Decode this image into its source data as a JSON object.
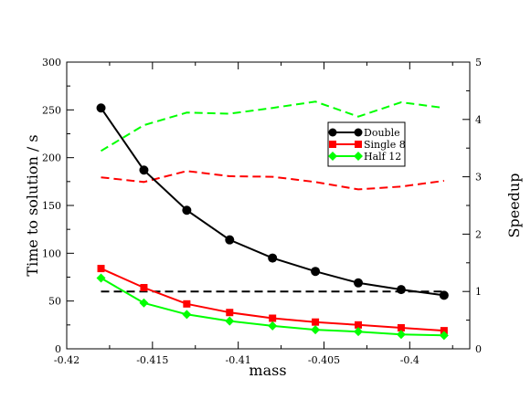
{
  "chart_data": {
    "type": "line",
    "title": "",
    "xlabel": "mass",
    "ylabel": "Time to solution / s",
    "y2label": "Speedup",
    "xlim": [
      -0.42,
      -0.3965
    ],
    "ylim": [
      0,
      300
    ],
    "y2lim": [
      0,
      5
    ],
    "xticks": [
      -0.42,
      -0.415,
      -0.41,
      -0.405,
      -0.4
    ],
    "xtick_labels": [
      "-0.42",
      "-0.415",
      "-0.41",
      "-0.405",
      "-0.4"
    ],
    "yticks": [
      0,
      50,
      100,
      150,
      200,
      250,
      300
    ],
    "ytick_labels": [
      "0",
      "50",
      "100",
      "150",
      "200",
      "250",
      "300"
    ],
    "y2ticks": [
      0,
      1,
      2,
      3,
      4,
      5
    ],
    "y2tick_labels": [
      "0",
      "1",
      "2",
      "3",
      "4",
      "5"
    ],
    "grid": false,
    "legend_position": "center-right",
    "x": [
      -0.418,
      -0.4155,
      -0.413,
      -0.4105,
      -0.408,
      -0.4055,
      -0.403,
      -0.4005,
      -0.398
    ],
    "series": [
      {
        "name": "Double",
        "axis": "left",
        "style": "solid",
        "marker": "circle",
        "color": "#000000",
        "values": [
          252,
          187,
          145,
          114,
          95,
          81,
          69,
          62,
          56
        ]
      },
      {
        "name": "Single 8",
        "axis": "left",
        "style": "solid",
        "marker": "square",
        "color": "#ff0000",
        "values": [
          84,
          64,
          47,
          38,
          32,
          28,
          25,
          22,
          19
        ]
      },
      {
        "name": "Half 12",
        "axis": "left",
        "style": "solid",
        "marker": "diamond",
        "color": "#00ff00",
        "values": [
          74,
          48,
          36,
          29,
          24,
          20,
          18,
          15,
          14
        ]
      },
      {
        "axis": "right",
        "style": "dashed",
        "color": "#ff0000",
        "values": [
          2.99,
          2.91,
          3.1,
          3.01,
          3.0,
          2.91,
          2.78,
          2.83,
          2.93
        ]
      },
      {
        "axis": "right",
        "style": "dashed",
        "color": "#00ff00",
        "values": [
          3.45,
          3.9,
          4.12,
          4.1,
          4.2,
          4.31,
          4.05,
          4.3,
          4.2
        ]
      },
      {
        "axis": "right",
        "style": "dashed",
        "color": "#000000",
        "values": [
          1,
          1,
          1,
          1,
          1,
          1,
          1,
          1,
          1
        ]
      }
    ]
  }
}
